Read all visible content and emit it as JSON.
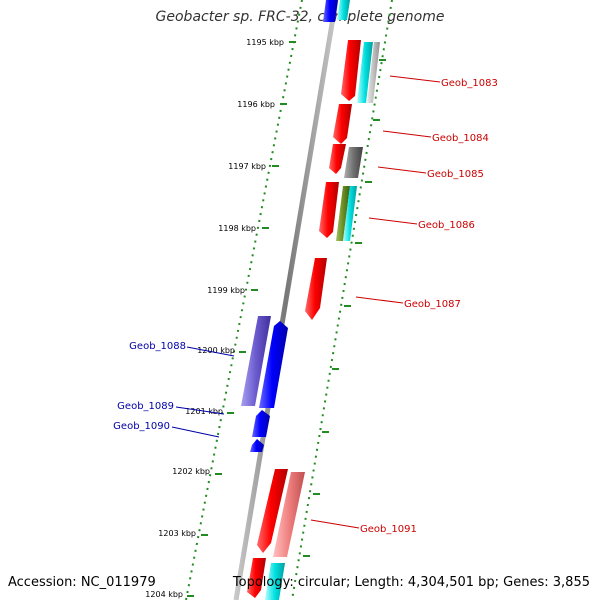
{
  "title": "Geobacter sp. FRC-32, complete genome",
  "footer": {
    "accession": "Accession: NC_011979",
    "topology": "Topology: circular; Length: 4,304,501 bp; Genes: 3,855"
  },
  "colors": {
    "backbone": "#8a8a8a",
    "scale_dots": "#228b22",
    "forward_label": "#cc0000",
    "reverse_label": "#0000aa",
    "red_gene": "#ee0000",
    "blue_gene": "#0000ee",
    "cyan_gene": "#00d5d5",
    "gray_gene": "#707070",
    "olive_gene": "#6b8e23",
    "violet_gene": "#6a5acd",
    "pink_gene": "#f08080"
  },
  "ticks": [
    "1195 kbp",
    "1196 kbp",
    "1197 kbp",
    "1198 kbp",
    "1199 kbp",
    "1200 kbp",
    "1201 kbp",
    "1202 kbp",
    "1203 kbp",
    "1204 kbp"
  ],
  "gene_labels": [
    {
      "text": "Geob_1083",
      "strand": "forward"
    },
    {
      "text": "Geob_1084",
      "strand": "forward"
    },
    {
      "text": "Geob_1085",
      "strand": "forward"
    },
    {
      "text": "Geob_1086",
      "strand": "forward"
    },
    {
      "text": "Geob_1087",
      "strand": "forward"
    },
    {
      "text": "Geob_1088",
      "strand": "reverse"
    },
    {
      "text": "Geob_1089",
      "strand": "reverse"
    },
    {
      "text": "Geob_1090",
      "strand": "reverse"
    },
    {
      "text": "Geob_1091",
      "strand": "forward"
    }
  ]
}
